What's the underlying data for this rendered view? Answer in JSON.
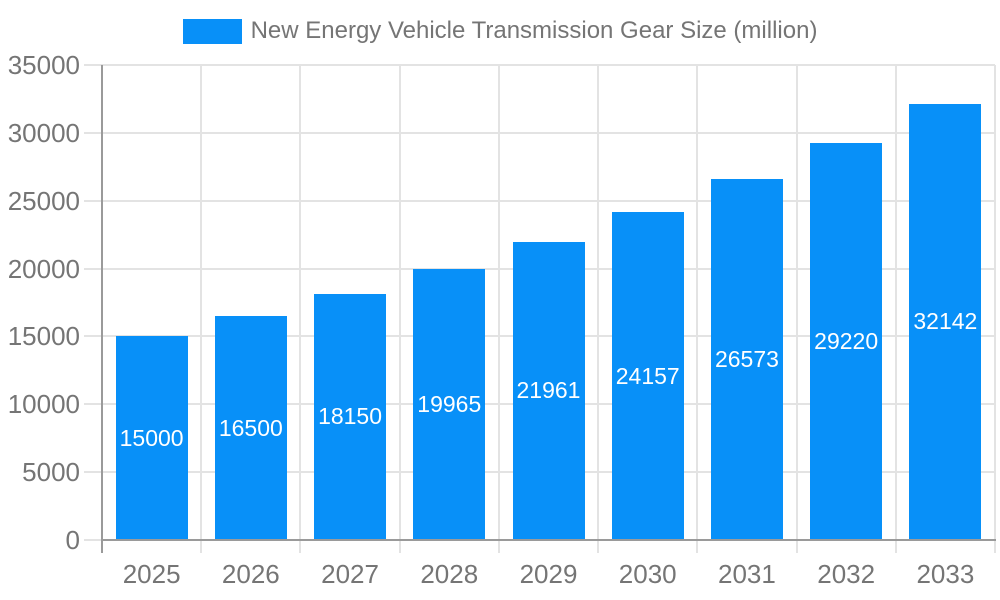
{
  "legend": {
    "label": "New Energy Vehicle Transmission Gear Size (million)",
    "swatch_color": "#0890F8"
  },
  "chart_data": {
    "type": "bar",
    "title": "New Energy Vehicle Transmission Gear Size (million)",
    "series_name": "New Energy Vehicle Transmission Gear Size (million)",
    "categories": [
      "2025",
      "2026",
      "2027",
      "2028",
      "2029",
      "2030",
      "2031",
      "2032",
      "2033"
    ],
    "values": [
      15000,
      16500,
      18150,
      19965,
      21961,
      24157,
      26573,
      29220,
      32142
    ],
    "value_labels": [
      "15000",
      "16500",
      "18150",
      "19965",
      "21961",
      "24157",
      "26573",
      "29220",
      "32142"
    ],
    "xlabel": "",
    "ylabel": "",
    "ylim": [
      0,
      35000
    ],
    "yticks": [
      0,
      5000,
      10000,
      15000,
      20000,
      25000,
      30000,
      35000
    ],
    "grid": true,
    "legend_position": "top-center",
    "colors": {
      "bar": "#0890F8",
      "value_label_text": "#FFFFFF",
      "axis_text": "#757575",
      "gridline": "#E3E3E3",
      "axis_line": "#9A9A9A",
      "background": "#FFFFFF"
    }
  }
}
